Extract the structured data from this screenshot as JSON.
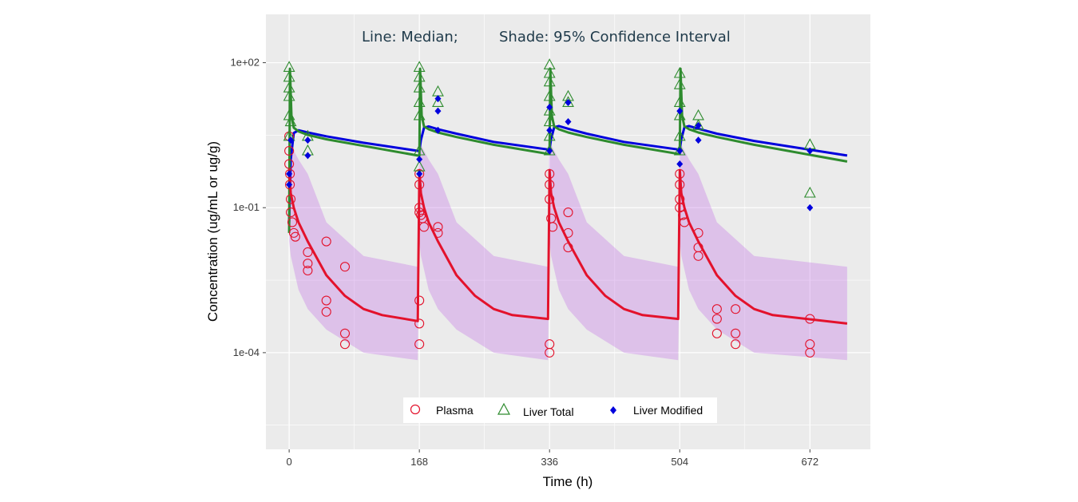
{
  "chart_data": {
    "type": "line",
    "annotation_left": "Line: Median;",
    "annotation_right": "Shade: 95% Confidence Interval",
    "xlabel": "Time (h)",
    "ylabel": "Concentration (ug/mL or ug/g)",
    "x_scale": "linear",
    "y_scale": "log10",
    "xlim": [
      -30,
      750
    ],
    "ylim": [
      1e-06,
      1000
    ],
    "x_ticks": [
      0,
      168,
      336,
      504,
      672
    ],
    "x_tick_labels": [
      "0",
      "168",
      "336",
      "504",
      "672"
    ],
    "y_ticks": [
      0.0001,
      0.1,
      100
    ],
    "y_tick_labels": [
      "1e-04",
      "1e-01",
      "1e+02"
    ],
    "grid": true,
    "legend_position": "bottom",
    "doses_h": [
      0,
      168,
      336,
      504
    ],
    "series": [
      {
        "name": "Plasma",
        "color": "#e3122c",
        "marker": "open-circle",
        "median": [
          [
            0,
            0.6
          ],
          [
            2,
            0.2
          ],
          [
            6,
            0.1
          ],
          [
            12,
            0.05
          ],
          [
            24,
            0.02
          ],
          [
            48,
            0.004
          ],
          [
            72,
            0.0015
          ],
          [
            96,
            0.0008
          ],
          [
            120,
            0.0006
          ],
          [
            166,
            0.00045
          ],
          [
            168,
            0.6
          ],
          [
            170,
            0.2
          ],
          [
            174,
            0.1
          ],
          [
            180,
            0.05
          ],
          [
            192,
            0.02
          ],
          [
            216,
            0.004
          ],
          [
            240,
            0.0015
          ],
          [
            264,
            0.0008
          ],
          [
            288,
            0.0006
          ],
          [
            334,
            0.0005
          ],
          [
            336,
            0.6
          ],
          [
            338,
            0.2
          ],
          [
            342,
            0.1
          ],
          [
            348,
            0.05
          ],
          [
            360,
            0.02
          ],
          [
            384,
            0.004
          ],
          [
            408,
            0.0015
          ],
          [
            432,
            0.0008
          ],
          [
            456,
            0.0006
          ],
          [
            502,
            0.0005
          ],
          [
            504,
            0.6
          ],
          [
            506,
            0.2
          ],
          [
            510,
            0.1
          ],
          [
            516,
            0.05
          ],
          [
            528,
            0.02
          ],
          [
            552,
            0.004
          ],
          [
            576,
            0.0015
          ],
          [
            600,
            0.0008
          ],
          [
            624,
            0.0006
          ],
          [
            720,
            0.0004
          ]
        ],
        "ci_band": [
          [
            0,
            0.02,
            10
          ],
          [
            2,
            0.01,
            2
          ],
          [
            12,
            0.002,
            1
          ],
          [
            24,
            0.0008,
            0.5
          ],
          [
            48,
            0.0003,
            0.05
          ],
          [
            96,
            0.0001,
            0.01
          ],
          [
            166,
            7e-05,
            0.006
          ],
          [
            168,
            0.02,
            10
          ],
          [
            170,
            0.01,
            2
          ],
          [
            180,
            0.002,
            1
          ],
          [
            192,
            0.0008,
            0.5
          ],
          [
            216,
            0.0003,
            0.05
          ],
          [
            264,
            0.0001,
            0.01
          ],
          [
            334,
            7e-05,
            0.006
          ],
          [
            336,
            0.02,
            10
          ],
          [
            338,
            0.01,
            2
          ],
          [
            348,
            0.002,
            1
          ],
          [
            360,
            0.0008,
            0.5
          ],
          [
            384,
            0.0003,
            0.05
          ],
          [
            432,
            0.0001,
            0.01
          ],
          [
            502,
            7e-05,
            0.006
          ],
          [
            504,
            0.02,
            10
          ],
          [
            506,
            0.01,
            2
          ],
          [
            516,
            0.002,
            1
          ],
          [
            528,
            0.0008,
            0.5
          ],
          [
            552,
            0.0003,
            0.05
          ],
          [
            600,
            0.0001,
            0.01
          ],
          [
            720,
            7e-05,
            0.006
          ]
        ],
        "observed": [
          [
            0,
            3
          ],
          [
            0,
            1.5
          ],
          [
            0,
            0.8
          ],
          [
            1,
            0.5
          ],
          [
            1,
            0.3
          ],
          [
            2,
            0.15
          ],
          [
            2,
            0.08
          ],
          [
            4,
            0.05
          ],
          [
            6,
            0.03
          ],
          [
            8,
            0.025
          ],
          [
            24,
            0.012
          ],
          [
            24,
            0.007
          ],
          [
            24,
            0.005
          ],
          [
            48,
            0.02
          ],
          [
            72,
            0.006
          ],
          [
            48,
            0.0012
          ],
          [
            48,
            0.0007
          ],
          [
            72,
            0.00025
          ],
          [
            72,
            0.00015
          ],
          [
            168,
            0.5
          ],
          [
            168,
            0.3
          ],
          [
            168,
            0.1
          ],
          [
            168,
            0.08
          ],
          [
            170,
            0.07
          ],
          [
            172,
            0.06
          ],
          [
            174,
            0.04
          ],
          [
            192,
            0.04
          ],
          [
            192,
            0.03
          ],
          [
            168,
            0.0012
          ],
          [
            168,
            0.0004
          ],
          [
            168,
            0.00015
          ],
          [
            336,
            0.5
          ],
          [
            336,
            0.3
          ],
          [
            336,
            0.15
          ],
          [
            338,
            0.06
          ],
          [
            340,
            0.04
          ],
          [
            360,
            0.08
          ],
          [
            360,
            0.03
          ],
          [
            360,
            0.015
          ],
          [
            336,
            0.00015
          ],
          [
            336,
            0.0001
          ],
          [
            504,
            0.5
          ],
          [
            504,
            0.3
          ],
          [
            504,
            0.15
          ],
          [
            504,
            0.1
          ],
          [
            508,
            0.07
          ],
          [
            510,
            0.05
          ],
          [
            528,
            0.03
          ],
          [
            528,
            0.015
          ],
          [
            528,
            0.01
          ],
          [
            552,
            0.0008
          ],
          [
            552,
            0.0005
          ],
          [
            552,
            0.00025
          ],
          [
            576,
            0.0008
          ],
          [
            576,
            0.00025
          ],
          [
            576,
            0.00015
          ],
          [
            672,
            0.0005
          ],
          [
            672,
            0.00015
          ],
          [
            672,
            0.0001
          ]
        ]
      },
      {
        "name": "Liver Total",
        "color": "#2e8b2e",
        "marker": "open-triangle",
        "median": [
          [
            0,
            0.03
          ],
          [
            1,
            75
          ],
          [
            3,
            8
          ],
          [
            6,
            4.5
          ],
          [
            12,
            3.8
          ],
          [
            24,
            3.2
          ],
          [
            48,
            2.6
          ],
          [
            96,
            1.9
          ],
          [
            166,
            1.2
          ],
          [
            168,
            1.2
          ],
          [
            169,
            75
          ],
          [
            171,
            8
          ],
          [
            174,
            4.8
          ],
          [
            180,
            4.2
          ],
          [
            192,
            3.6
          ],
          [
            216,
            2.9
          ],
          [
            264,
            2.0
          ],
          [
            334,
            1.3
          ],
          [
            336,
            1.3
          ],
          [
            337,
            75
          ],
          [
            339,
            8
          ],
          [
            342,
            4.8
          ],
          [
            348,
            4.2
          ],
          [
            360,
            3.6
          ],
          [
            384,
            2.9
          ],
          [
            432,
            2.0
          ],
          [
            502,
            1.3
          ],
          [
            504,
            1.3
          ],
          [
            505,
            75
          ],
          [
            507,
            8
          ],
          [
            510,
            4.8
          ],
          [
            516,
            4.2
          ],
          [
            528,
            3.6
          ],
          [
            552,
            2.9
          ],
          [
            600,
            2.0
          ],
          [
            720,
            0.9
          ]
        ],
        "observed": [
          [
            0,
            80
          ],
          [
            0,
            50
          ],
          [
            0,
            30
          ],
          [
            0,
            20
          ],
          [
            0,
            8
          ],
          [
            0,
            3
          ],
          [
            2,
            6
          ],
          [
            24,
            3
          ],
          [
            24,
            1.5
          ],
          [
            168,
            80
          ],
          [
            168,
            50
          ],
          [
            168,
            30
          ],
          [
            168,
            15
          ],
          [
            168,
            8
          ],
          [
            168,
            1.5
          ],
          [
            168,
            0.7
          ],
          [
            192,
            25
          ],
          [
            192,
            15
          ],
          [
            336,
            90
          ],
          [
            336,
            60
          ],
          [
            336,
            40
          ],
          [
            336,
            20
          ],
          [
            336,
            10
          ],
          [
            336,
            6
          ],
          [
            336,
            3
          ],
          [
            336,
            1.5
          ],
          [
            360,
            20
          ],
          [
            360,
            15
          ],
          [
            504,
            60
          ],
          [
            504,
            35
          ],
          [
            504,
            15
          ],
          [
            504,
            8
          ],
          [
            504,
            3
          ],
          [
            504,
            1.5
          ],
          [
            528,
            8
          ],
          [
            528,
            5
          ],
          [
            672,
            2
          ],
          [
            672,
            0.2
          ]
        ]
      },
      {
        "name": "Liver Modified",
        "color": "#0000dd",
        "marker": "filled-diamond",
        "median": [
          [
            0,
            0.05
          ],
          [
            2,
            1
          ],
          [
            6,
            3.5
          ],
          [
            12,
            4.0
          ],
          [
            24,
            3.6
          ],
          [
            48,
            3.0
          ],
          [
            96,
            2.2
          ],
          [
            166,
            1.5
          ],
          [
            168,
            1.5
          ],
          [
            170,
            2.5
          ],
          [
            174,
            4.5
          ],
          [
            180,
            4.8
          ],
          [
            192,
            4.2
          ],
          [
            216,
            3.4
          ],
          [
            264,
            2.3
          ],
          [
            334,
            1.6
          ],
          [
            336,
            1.6
          ],
          [
            338,
            2.6
          ],
          [
            342,
            4.6
          ],
          [
            348,
            4.9
          ],
          [
            360,
            4.3
          ],
          [
            384,
            3.4
          ],
          [
            432,
            2.3
          ],
          [
            502,
            1.6
          ],
          [
            504,
            1.6
          ],
          [
            506,
            2.6
          ],
          [
            510,
            4.6
          ],
          [
            516,
            4.9
          ],
          [
            528,
            4.3
          ],
          [
            552,
            3.4
          ],
          [
            600,
            2.4
          ],
          [
            720,
            1.2
          ]
        ],
        "observed": [
          [
            0,
            0.5
          ],
          [
            0,
            0.3
          ],
          [
            2,
            2.5
          ],
          [
            24,
            2.5
          ],
          [
            24,
            1.2
          ],
          [
            168,
            1
          ],
          [
            168,
            0.5
          ],
          [
            192,
            18
          ],
          [
            192,
            10
          ],
          [
            192,
            4
          ],
          [
            336,
            12
          ],
          [
            336,
            4
          ],
          [
            336,
            1.5
          ],
          [
            360,
            15
          ],
          [
            360,
            6
          ],
          [
            504,
            10
          ],
          [
            504,
            1.5
          ],
          [
            504,
            0.8
          ],
          [
            528,
            5
          ],
          [
            528,
            2.5
          ],
          [
            672,
            1.5
          ],
          [
            672,
            0.1
          ]
        ]
      }
    ]
  }
}
